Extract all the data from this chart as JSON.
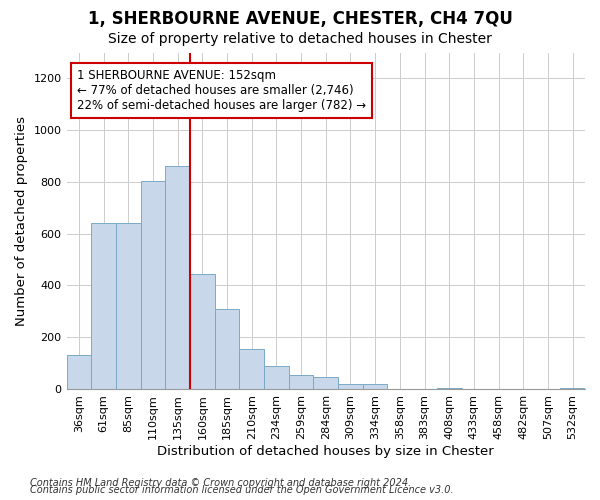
{
  "title_line1": "1, SHERBOURNE AVENUE, CHESTER, CH4 7QU",
  "title_line2": "Size of property relative to detached houses in Chester",
  "xlabel": "Distribution of detached houses by size in Chester",
  "ylabel": "Number of detached properties",
  "categories": [
    "36sqm",
    "61sqm",
    "85sqm",
    "110sqm",
    "135sqm",
    "160sqm",
    "185sqm",
    "210sqm",
    "234sqm",
    "259sqm",
    "284sqm",
    "309sqm",
    "334sqm",
    "358sqm",
    "383sqm",
    "408sqm",
    "433sqm",
    "458sqm",
    "482sqm",
    "507sqm",
    "532sqm"
  ],
  "values": [
    130,
    640,
    640,
    805,
    860,
    445,
    310,
    155,
    90,
    55,
    45,
    20,
    20,
    0,
    0,
    5,
    0,
    0,
    0,
    0,
    5
  ],
  "bar_color": "#c8d8ea",
  "bar_edgecolor": "#7aaac8",
  "vline_color": "#cc0000",
  "vline_x": 4.5,
  "annotation_text": "1 SHERBOURNE AVENUE: 152sqm\n← 77% of detached houses are smaller (2,746)\n22% of semi-detached houses are larger (782) →",
  "annotation_box_facecolor": "#ffffff",
  "annotation_box_edgecolor": "#cc0000",
  "ylim": [
    0,
    1300
  ],
  "yticks": [
    0,
    200,
    400,
    600,
    800,
    1000,
    1200
  ],
  "grid_color": "#cccccc",
  "background_color": "#ffffff",
  "footer_line1": "Contains HM Land Registry data © Crown copyright and database right 2024.",
  "footer_line2": "Contains public sector information licensed under the Open Government Licence v3.0.",
  "title_fontsize": 12,
  "subtitle_fontsize": 10,
  "axis_label_fontsize": 9.5,
  "tick_fontsize": 8,
  "annotation_fontsize": 8.5,
  "footer_fontsize": 7
}
